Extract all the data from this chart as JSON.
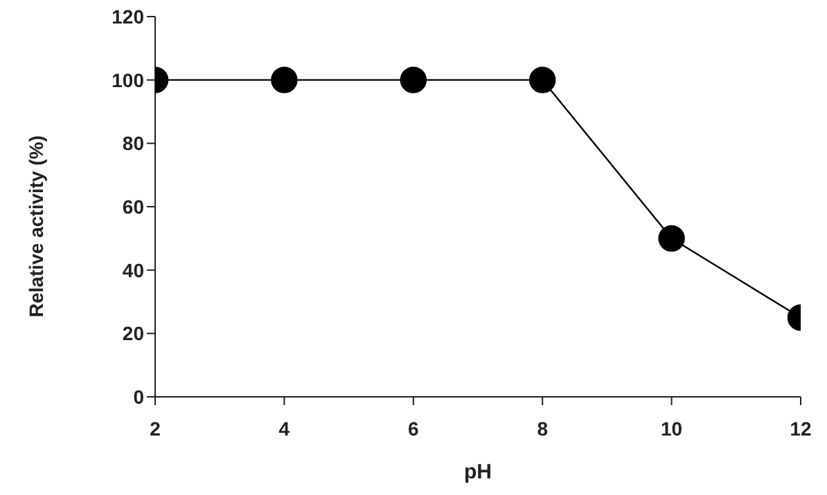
{
  "chart_data": {
    "type": "line",
    "xlabel": "pH",
    "ylabel": "Relative activity (%)",
    "x": [
      2,
      4,
      6,
      8,
      10,
      12
    ],
    "series": [
      {
        "color": "#000000",
        "values": [
          100,
          100,
          100,
          100,
          50,
          25
        ]
      }
    ],
    "xlim": [
      2,
      12
    ],
    "xticks": [
      2,
      4,
      6,
      8,
      10,
      12
    ],
    "ylim": [
      0,
      120
    ],
    "yticks": [
      0,
      20,
      40,
      60,
      80,
      100,
      120
    ],
    "grid": false,
    "legend": false,
    "marker": "circle",
    "line_style": "solid"
  }
}
